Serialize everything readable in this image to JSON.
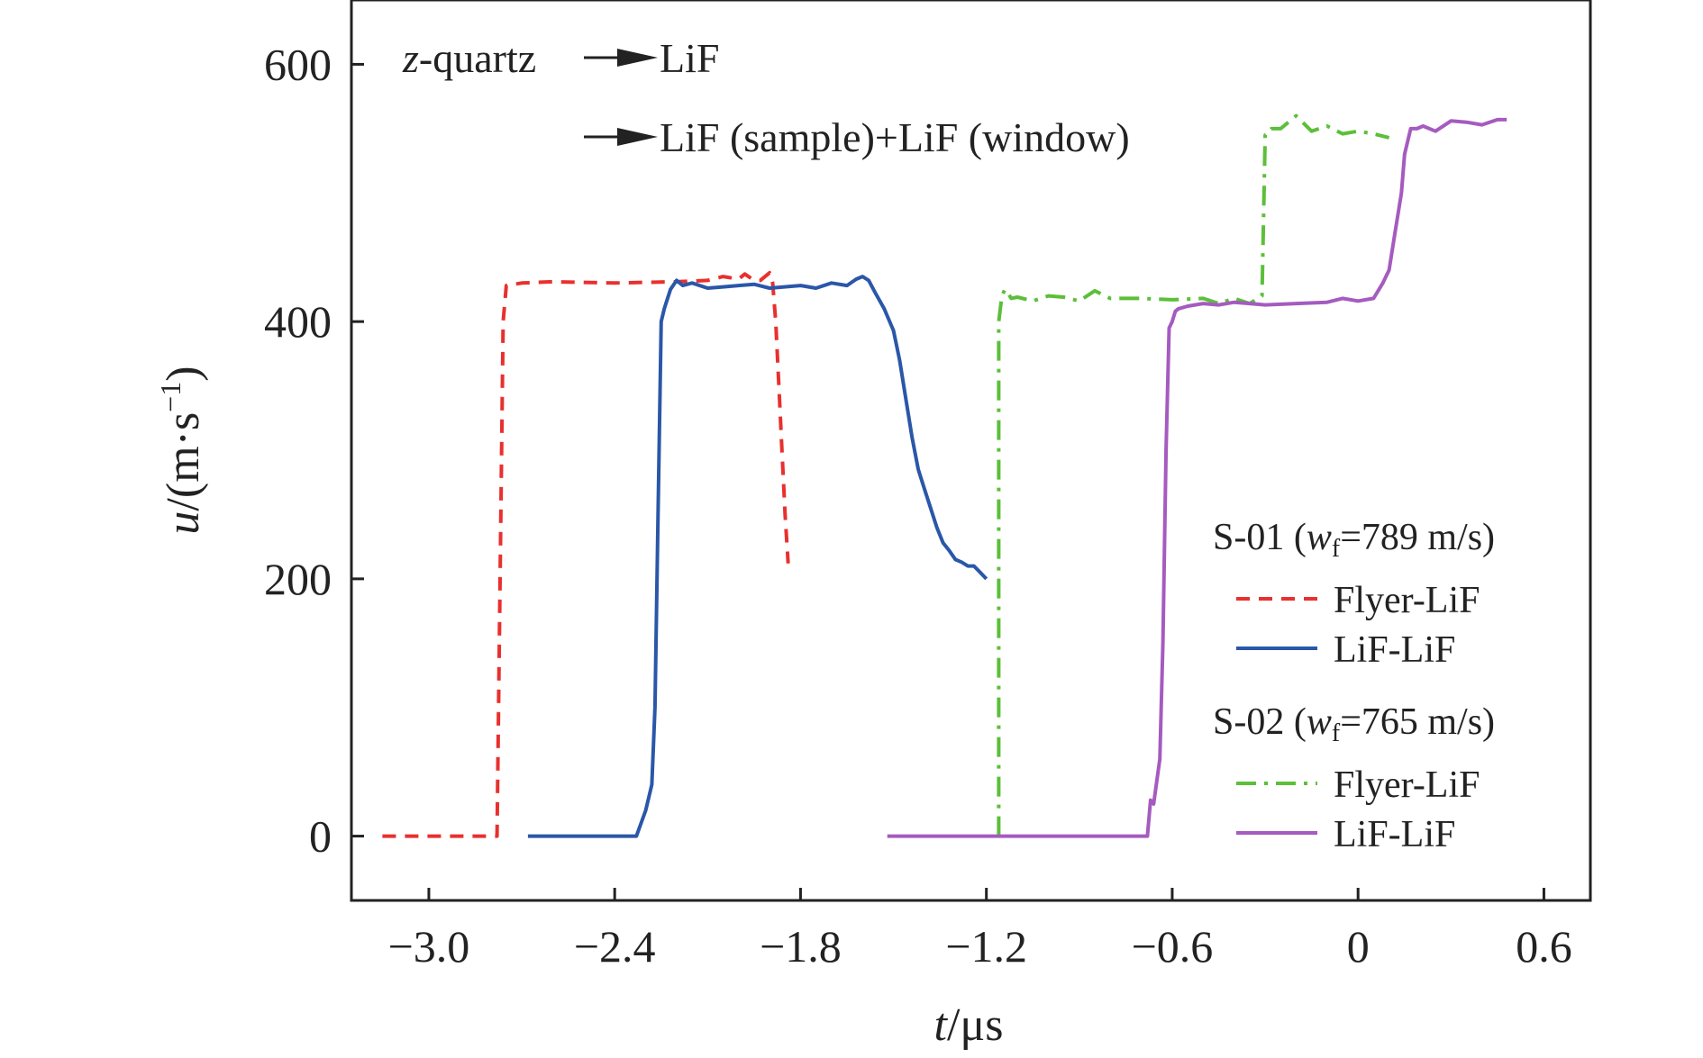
{
  "chart_data": {
    "type": "line",
    "xlabel": {
      "italic": "t",
      "rest": "/μs"
    },
    "ylabel": {
      "italic": "u",
      "rest": "/(m·s",
      "sup": "−1",
      "close": ")"
    },
    "xlim": [
      -3.25,
      0.75
    ],
    "ylim": [
      -50,
      650
    ],
    "xticks": [
      -3.0,
      -2.4,
      -1.8,
      -1.2,
      -0.6,
      0,
      0.6
    ],
    "xtick_labels": [
      "−3.0",
      "−2.4",
      "−1.8",
      "−1.2",
      "−0.6",
      "0",
      "0.6"
    ],
    "yticks": [
      0,
      200,
      400,
      600
    ],
    "ytick_labels": [
      "0",
      "200",
      "400",
      "600"
    ],
    "grid": false,
    "annotations": {
      "line1_italic": "z",
      "line1_rest": "-quartz",
      "line1_target": "LiF",
      "line2_target": "LiF (sample)+LiF (window)"
    },
    "legend": {
      "position": "bottom-right",
      "groups": [
        {
          "title_pre": "S-01 (",
          "title_var": "w",
          "title_sub": "f",
          "title_post": "=789 m/s)",
          "entries": [
            "Flyer-LiF",
            "LiF-LiF"
          ]
        },
        {
          "title_pre": "S-02 (",
          "title_var": "w",
          "title_sub": "f",
          "title_post": "=765 m/s)",
          "entries": [
            "Flyer-LiF",
            "LiF-LiF"
          ]
        }
      ]
    },
    "series": [
      {
        "group": "S-01",
        "label": "Flyer-LiF",
        "color": "#e8302e",
        "style": "dashed",
        "x": [
          -3.15,
          -2.78,
          -2.77,
          -2.76,
          -2.75,
          -2.7,
          -2.6,
          -2.4,
          -2.2,
          -2.1,
          -2.05,
          -2.0,
          -1.98,
          -1.95,
          -1.93,
          -1.9,
          -1.89,
          -1.88,
          -1.87,
          -1.86,
          -1.85,
          -1.84
        ],
        "y": [
          0,
          0,
          200,
          400,
          428,
          430,
          431,
          430,
          431,
          432,
          435,
          433,
          437,
          432,
          432,
          438,
          430,
          400,
          350,
          300,
          250,
          212
        ]
      },
      {
        "group": "S-01",
        "label": "LiF-LiF",
        "color": "#2a57a8",
        "style": "solid",
        "x": [
          -2.68,
          -2.33,
          -2.3,
          -2.28,
          -2.27,
          -2.26,
          -2.25,
          -2.24,
          -2.22,
          -2.2,
          -2.18,
          -2.15,
          -2.1,
          -2.05,
          -2.0,
          -1.95,
          -1.9,
          -1.8,
          -1.75,
          -1.7,
          -1.65,
          -1.62,
          -1.6,
          -1.58,
          -1.56,
          -1.53,
          -1.5,
          -1.48,
          -1.46,
          -1.44,
          -1.42,
          -1.4,
          -1.38,
          -1.36,
          -1.34,
          -1.32,
          -1.3,
          -1.28,
          -1.26,
          -1.24,
          -1.22,
          -1.2
        ],
        "y": [
          0,
          0,
          20,
          40,
          100,
          250,
          400,
          410,
          425,
          432,
          428,
          430,
          426,
          427,
          428,
          429,
          426,
          428,
          426,
          430,
          428,
          433,
          435,
          432,
          423,
          410,
          393,
          370,
          340,
          310,
          285,
          270,
          255,
          240,
          228,
          222,
          215,
          213,
          210,
          210,
          205,
          200
        ]
      },
      {
        "group": "S-02",
        "label": "Flyer-LiF",
        "color": "#5cbf3a",
        "style": "dashdot",
        "x": [
          -1.16,
          -1.16,
          -1.15,
          -1.14,
          -1.13,
          -1.12,
          -1.1,
          -1.05,
          -1.0,
          -0.95,
          -0.9,
          -0.85,
          -0.8,
          -0.7,
          -0.6,
          -0.5,
          -0.45,
          -0.4,
          -0.35,
          -0.31,
          -0.3,
          -0.29,
          -0.28,
          -0.25,
          -0.2,
          -0.15,
          -0.1,
          -0.05,
          0.0,
          0.05,
          0.1
        ],
        "y": [
          0,
          400,
          420,
          425,
          422,
          418,
          419,
          416,
          420,
          419,
          416,
          424,
          418,
          418,
          417,
          418,
          414,
          418,
          414,
          420,
          545,
          546,
          550,
          550,
          560,
          548,
          552,
          546,
          548,
          546,
          543
        ]
      },
      {
        "group": "S-02",
        "label": "LiF-LiF",
        "color": "#a55bbf",
        "style": "solid",
        "x": [
          -1.52,
          -0.68,
          -0.67,
          -0.66,
          -0.64,
          -0.63,
          -0.62,
          -0.61,
          -0.6,
          -0.59,
          -0.58,
          -0.55,
          -0.5,
          -0.45,
          -0.4,
          -0.35,
          -0.3,
          -0.2,
          -0.1,
          -0.05,
          0.0,
          0.05,
          0.08,
          0.1,
          0.12,
          0.14,
          0.15,
          0.17,
          0.19,
          0.21,
          0.25,
          0.3,
          0.35,
          0.4,
          0.45,
          0.48
        ],
        "y": [
          0,
          0,
          28,
          25,
          60,
          150,
          300,
          395,
          400,
          408,
          410,
          412,
          414,
          413,
          415,
          414,
          413,
          414,
          415,
          418,
          416,
          418,
          430,
          440,
          470,
          500,
          530,
          550,
          550,
          552,
          548,
          556,
          555,
          553,
          557,
          557
        ]
      }
    ]
  }
}
